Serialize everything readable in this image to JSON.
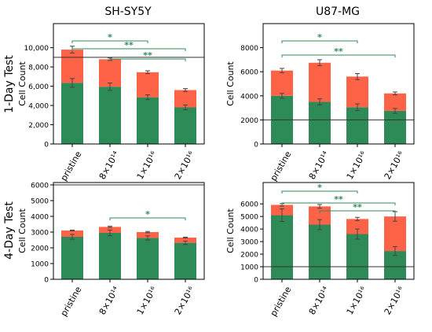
{
  "colors": {
    "live": "#2e8b57",
    "dead": "#ff6347",
    "bracket": "#2e8b57",
    "refline": "#333333",
    "axis": "#000000"
  },
  "chart_data": [
    {
      "type": "bar",
      "stacked": true,
      "column_title": "SH-SY5Y",
      "row_title": "1-Day Test",
      "ylabel": "Cell Count",
      "categories": [
        "pristine",
        "8×10¹⁴",
        "1×10¹⁶",
        "2×10¹⁶"
      ],
      "ylim": [
        0,
        12500
      ],
      "yticks": [
        0,
        2000,
        4000,
        6000,
        8000,
        10000
      ],
      "ytick_labels": [
        "0",
        "2,000",
        "4,000",
        "6,000",
        "8,000",
        "10,000"
      ],
      "series": [
        {
          "values": [
            6350,
            5950,
            4850,
            3800
          ],
          "errors": [
            450,
            380,
            250,
            250
          ]
        },
        {
          "values": [
            3450,
            2850,
            2600,
            1800
          ],
          "errors": [
            350,
            130,
            150,
            150
          ]
        }
      ],
      "reference_line": 9000,
      "significance": [
        {
          "from": 0,
          "to": 2,
          "label": "*"
        },
        {
          "from": 0,
          "to": 3,
          "label": "**"
        },
        {
          "from": 1,
          "to": 3,
          "label": "**"
        }
      ]
    },
    {
      "type": "bar",
      "stacked": true,
      "column_title": "U87-MG",
      "row_title": "",
      "ylabel": "Cell Count",
      "categories": [
        "pristine",
        "8×10¹⁴",
        "1×10¹⁶",
        "2×10¹⁶"
      ],
      "ylim": [
        0,
        10000
      ],
      "yticks": [
        0,
        2000,
        4000,
        6000,
        8000
      ],
      "ytick_labels": [
        "0",
        "2000",
        "4000",
        "6000",
        "8000"
      ],
      "series": [
        {
          "values": [
            4000,
            3500,
            3050,
            2750
          ],
          "errors": [
            200,
            250,
            280,
            200
          ]
        },
        {
          "values": [
            2100,
            3250,
            2550,
            1450
          ],
          "errors": [
            180,
            250,
            250,
            120
          ]
        }
      ],
      "reference_line": 2000,
      "significance": [
        {
          "from": 0,
          "to": 2,
          "label": "*"
        },
        {
          "from": 0,
          "to": 3,
          "label": "**"
        }
      ]
    },
    {
      "type": "bar",
      "stacked": true,
      "column_title": "",
      "row_title": "4-Day Test",
      "ylabel": "Cell Count",
      "categories": [
        "pristine",
        "8×10¹⁴",
        "1×10¹⁶",
        "2×10¹⁶"
      ],
      "ylim": [
        0,
        6150
      ],
      "yticks": [
        0,
        1000,
        2000,
        3000,
        4000,
        5000,
        6000
      ],
      "ytick_labels": [
        "0",
        "1000",
        "2000",
        "3000",
        "4000",
        "5000",
        "6000"
      ],
      "series": [
        {
          "values": [
            2700,
            2950,
            2630,
            2320
          ],
          "errors": [
            150,
            180,
            130,
            110
          ]
        },
        {
          "values": [
            400,
            380,
            370,
            330
          ],
          "errors": [
            30,
            40,
            40,
            30
          ]
        }
      ],
      "reference_line": 6000,
      "significance": [
        {
          "from": 1,
          "to": 3,
          "label": "*"
        }
      ]
    },
    {
      "type": "bar",
      "stacked": true,
      "column_title": "",
      "row_title": "",
      "ylabel": "Cell Count",
      "categories": [
        "pristine",
        "8×10¹⁴",
        "1×10¹⁶",
        "2×10¹⁶"
      ],
      "ylim": [
        0,
        7700
      ],
      "yticks": [
        0,
        1000,
        2000,
        3000,
        4000,
        5000,
        6000
      ],
      "ytick_labels": [
        "0",
        "1000",
        "2000",
        "3000",
        "4000",
        "5000",
        "6000"
      ],
      "series": [
        {
          "values": [
            5100,
            4350,
            3600,
            2250
          ],
          "errors": [
            500,
            400,
            400,
            350
          ]
        },
        {
          "values": [
            820,
            1450,
            1200,
            2750
          ],
          "errors": [
            100,
            150,
            130,
            380
          ]
        }
      ],
      "reference_line": 1000,
      "significance": [
        {
          "from": 0,
          "to": 2,
          "label": "*"
        },
        {
          "from": 0,
          "to": 3,
          "label": "**"
        },
        {
          "from": 1,
          "to": 3,
          "label": "**"
        }
      ]
    }
  ]
}
